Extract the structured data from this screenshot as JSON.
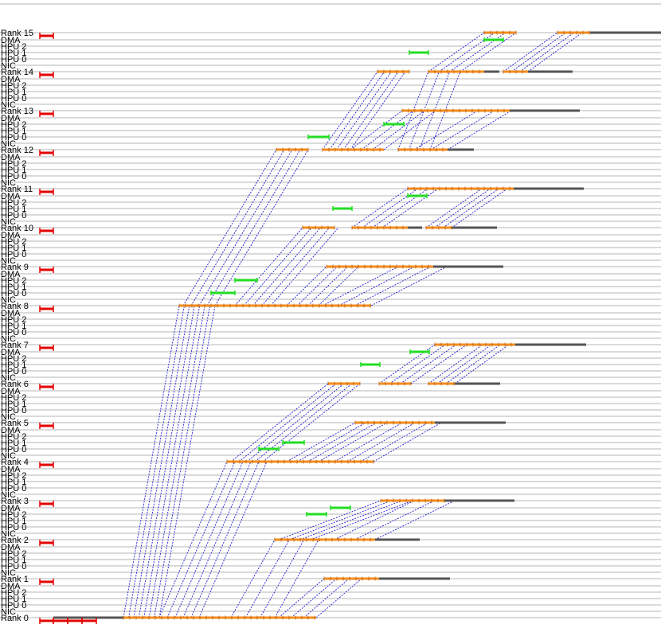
{
  "rank_blocks": [
    {
      "rank_label": "Rank 0",
      "lanes": [
        "DMA",
        "HPU 2",
        "HPU 1",
        "HPU 0",
        "NIC"
      ]
    },
    {
      "rank_label": "Rank 1",
      "lanes": [
        "DMA",
        "HPU 2",
        "HPU 1",
        "HPU 0",
        "NIC"
      ]
    },
    {
      "rank_label": "Rank 2",
      "lanes": [
        "DMA",
        "HPU 2",
        "HPU 1",
        "HPU 0",
        "NIC"
      ]
    },
    {
      "rank_label": "Rank 3",
      "lanes": [
        "DMA",
        "HPU 2",
        "HPU 1",
        "HPU 0",
        "NIC"
      ]
    },
    {
      "rank_label": "Rank 4",
      "lanes": [
        "DMA",
        "HPU 2",
        "HPU 1",
        "HPU 0",
        "NIC"
      ]
    },
    {
      "rank_label": "Rank 5",
      "lanes": [
        "DMA",
        "HPU 2",
        "HPU 1",
        "HPU 0",
        "NIC"
      ]
    },
    {
      "rank_label": "Rank 6",
      "lanes": [
        "DMA",
        "HPU 2",
        "HPU 1",
        "HPU 0",
        "NIC"
      ]
    },
    {
      "rank_label": "Rank 7",
      "lanes": [
        "DMA",
        "HPU 2",
        "HPU 1",
        "HPU 0",
        "NIC"
      ]
    },
    {
      "rank_label": "Rank 8",
      "lanes": [
        "DMA",
        "HPU 2",
        "HPU 1",
        "HPU 0",
        "NIC"
      ]
    },
    {
      "rank_label": "Rank 9",
      "lanes": [
        "DMA",
        "HPU 2",
        "HPU 1",
        "HPU 0",
        "NIC"
      ]
    },
    {
      "rank_label": "Rank 10",
      "lanes": [
        "DMA",
        "HPU 2",
        "HPU 1",
        "HPU 0",
        "NIC"
      ]
    },
    {
      "rank_label": "Rank 11",
      "lanes": [
        "DMA",
        "HPU 2",
        "HPU 1",
        "HPU 0",
        "NIC"
      ]
    },
    {
      "rank_label": "Rank 12",
      "lanes": [
        "DMA",
        "HPU 2",
        "HPU 1",
        "HPU 0",
        "NIC"
      ]
    },
    {
      "rank_label": "Rank 13",
      "lanes": [
        "DMA",
        "HPU 2",
        "HPU 1",
        "HPU 0",
        "NIC"
      ]
    },
    {
      "rank_label": "Rank 14",
      "lanes": [
        "DMA",
        "HPU 2",
        "HPU 1",
        "HPU 0",
        "NIC"
      ]
    },
    {
      "rank_label": "Rank 15",
      "lanes": []
    }
  ],
  "colors": {
    "lane_line": "#b4b4b4",
    "cpu_bar": "#e60000",
    "nic_busy": "#f08c1e",
    "nic_idle": "#555555",
    "hpu_bar": "#22dd22",
    "message": "#1e1ed8"
  }
}
